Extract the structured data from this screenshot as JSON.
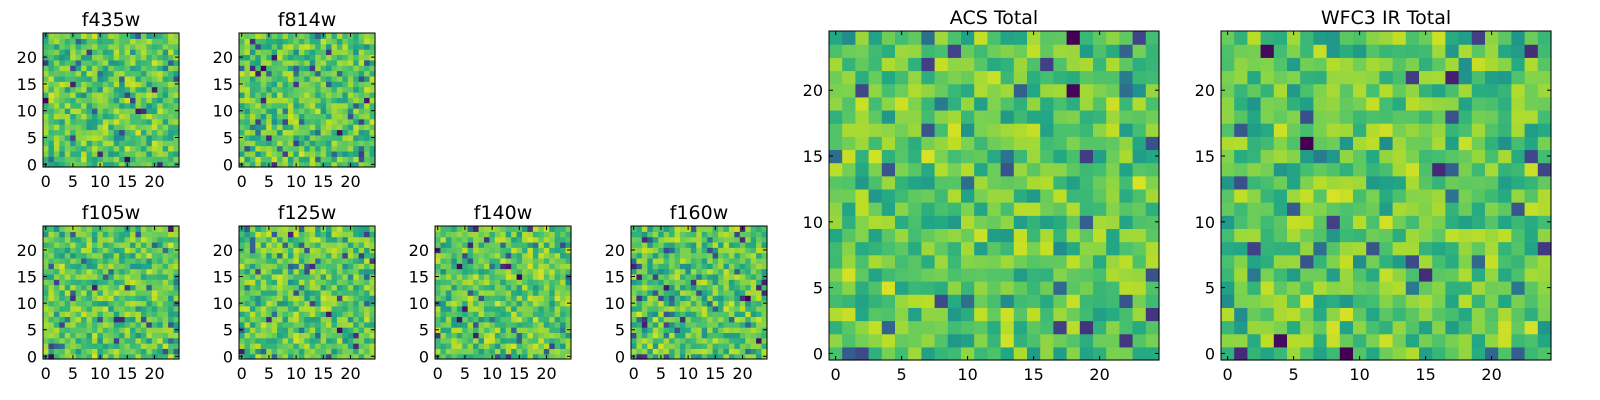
{
  "chart_data": [
    {
      "type": "heatmap",
      "title": "f435w",
      "xticks": [
        0,
        5,
        10,
        15,
        20
      ],
      "yticks": [
        0,
        5,
        10,
        15,
        20
      ],
      "xlim": [
        0,
        25
      ],
      "ylim": [
        0,
        25
      ],
      "grid": false,
      "colormap": "viridis",
      "seed": 11
    },
    {
      "type": "heatmap",
      "title": "f814w",
      "xticks": [
        0,
        5,
        10,
        15,
        20
      ],
      "yticks": [
        0,
        5,
        10,
        15,
        20
      ],
      "xlim": [
        0,
        25
      ],
      "ylim": [
        0,
        25
      ],
      "grid": false,
      "colormap": "viridis",
      "seed": 23
    },
    {
      "type": "heatmap",
      "title": "f105w",
      "xticks": [
        0,
        5,
        10,
        15,
        20
      ],
      "yticks": [
        0,
        5,
        10,
        15,
        20
      ],
      "xlim": [
        0,
        25
      ],
      "ylim": [
        0,
        25
      ],
      "grid": false,
      "colormap": "viridis",
      "seed": 37
    },
    {
      "type": "heatmap",
      "title": "f125w",
      "xticks": [
        0,
        5,
        10,
        15,
        20
      ],
      "yticks": [
        0,
        5,
        10,
        15,
        20
      ],
      "xlim": [
        0,
        25
      ],
      "ylim": [
        0,
        25
      ],
      "grid": false,
      "colormap": "viridis",
      "seed": 41
    },
    {
      "type": "heatmap",
      "title": "f140w",
      "xticks": [
        0,
        5,
        10,
        15,
        20
      ],
      "yticks": [
        0,
        5,
        10,
        15,
        20
      ],
      "xlim": [
        0,
        25
      ],
      "ylim": [
        0,
        25
      ],
      "grid": false,
      "colormap": "viridis",
      "seed": 53
    },
    {
      "type": "heatmap",
      "title": "f160w",
      "xticks": [
        0,
        5,
        10,
        15,
        20
      ],
      "yticks": [
        0,
        5,
        10,
        15,
        20
      ],
      "xlim": [
        0,
        25
      ],
      "ylim": [
        0,
        25
      ],
      "grid": false,
      "colormap": "viridis",
      "seed": 67
    },
    {
      "type": "heatmap",
      "title": "ACS Total",
      "xticks": [
        0,
        5,
        10,
        15,
        20
      ],
      "yticks": [
        0,
        5,
        10,
        15,
        20
      ],
      "xlim": [
        0,
        25
      ],
      "ylim": [
        0,
        25
      ],
      "grid": false,
      "colormap": "viridis",
      "seed": 79
    },
    {
      "type": "heatmap",
      "title": "WFC3 IR Total",
      "xticks": [
        0,
        5,
        10,
        15,
        20
      ],
      "yticks": [
        0,
        5,
        10,
        15,
        20
      ],
      "xlim": [
        0,
        25
      ],
      "ylim": [
        0,
        25
      ],
      "grid": false,
      "colormap": "viridis",
      "seed": 97
    }
  ]
}
